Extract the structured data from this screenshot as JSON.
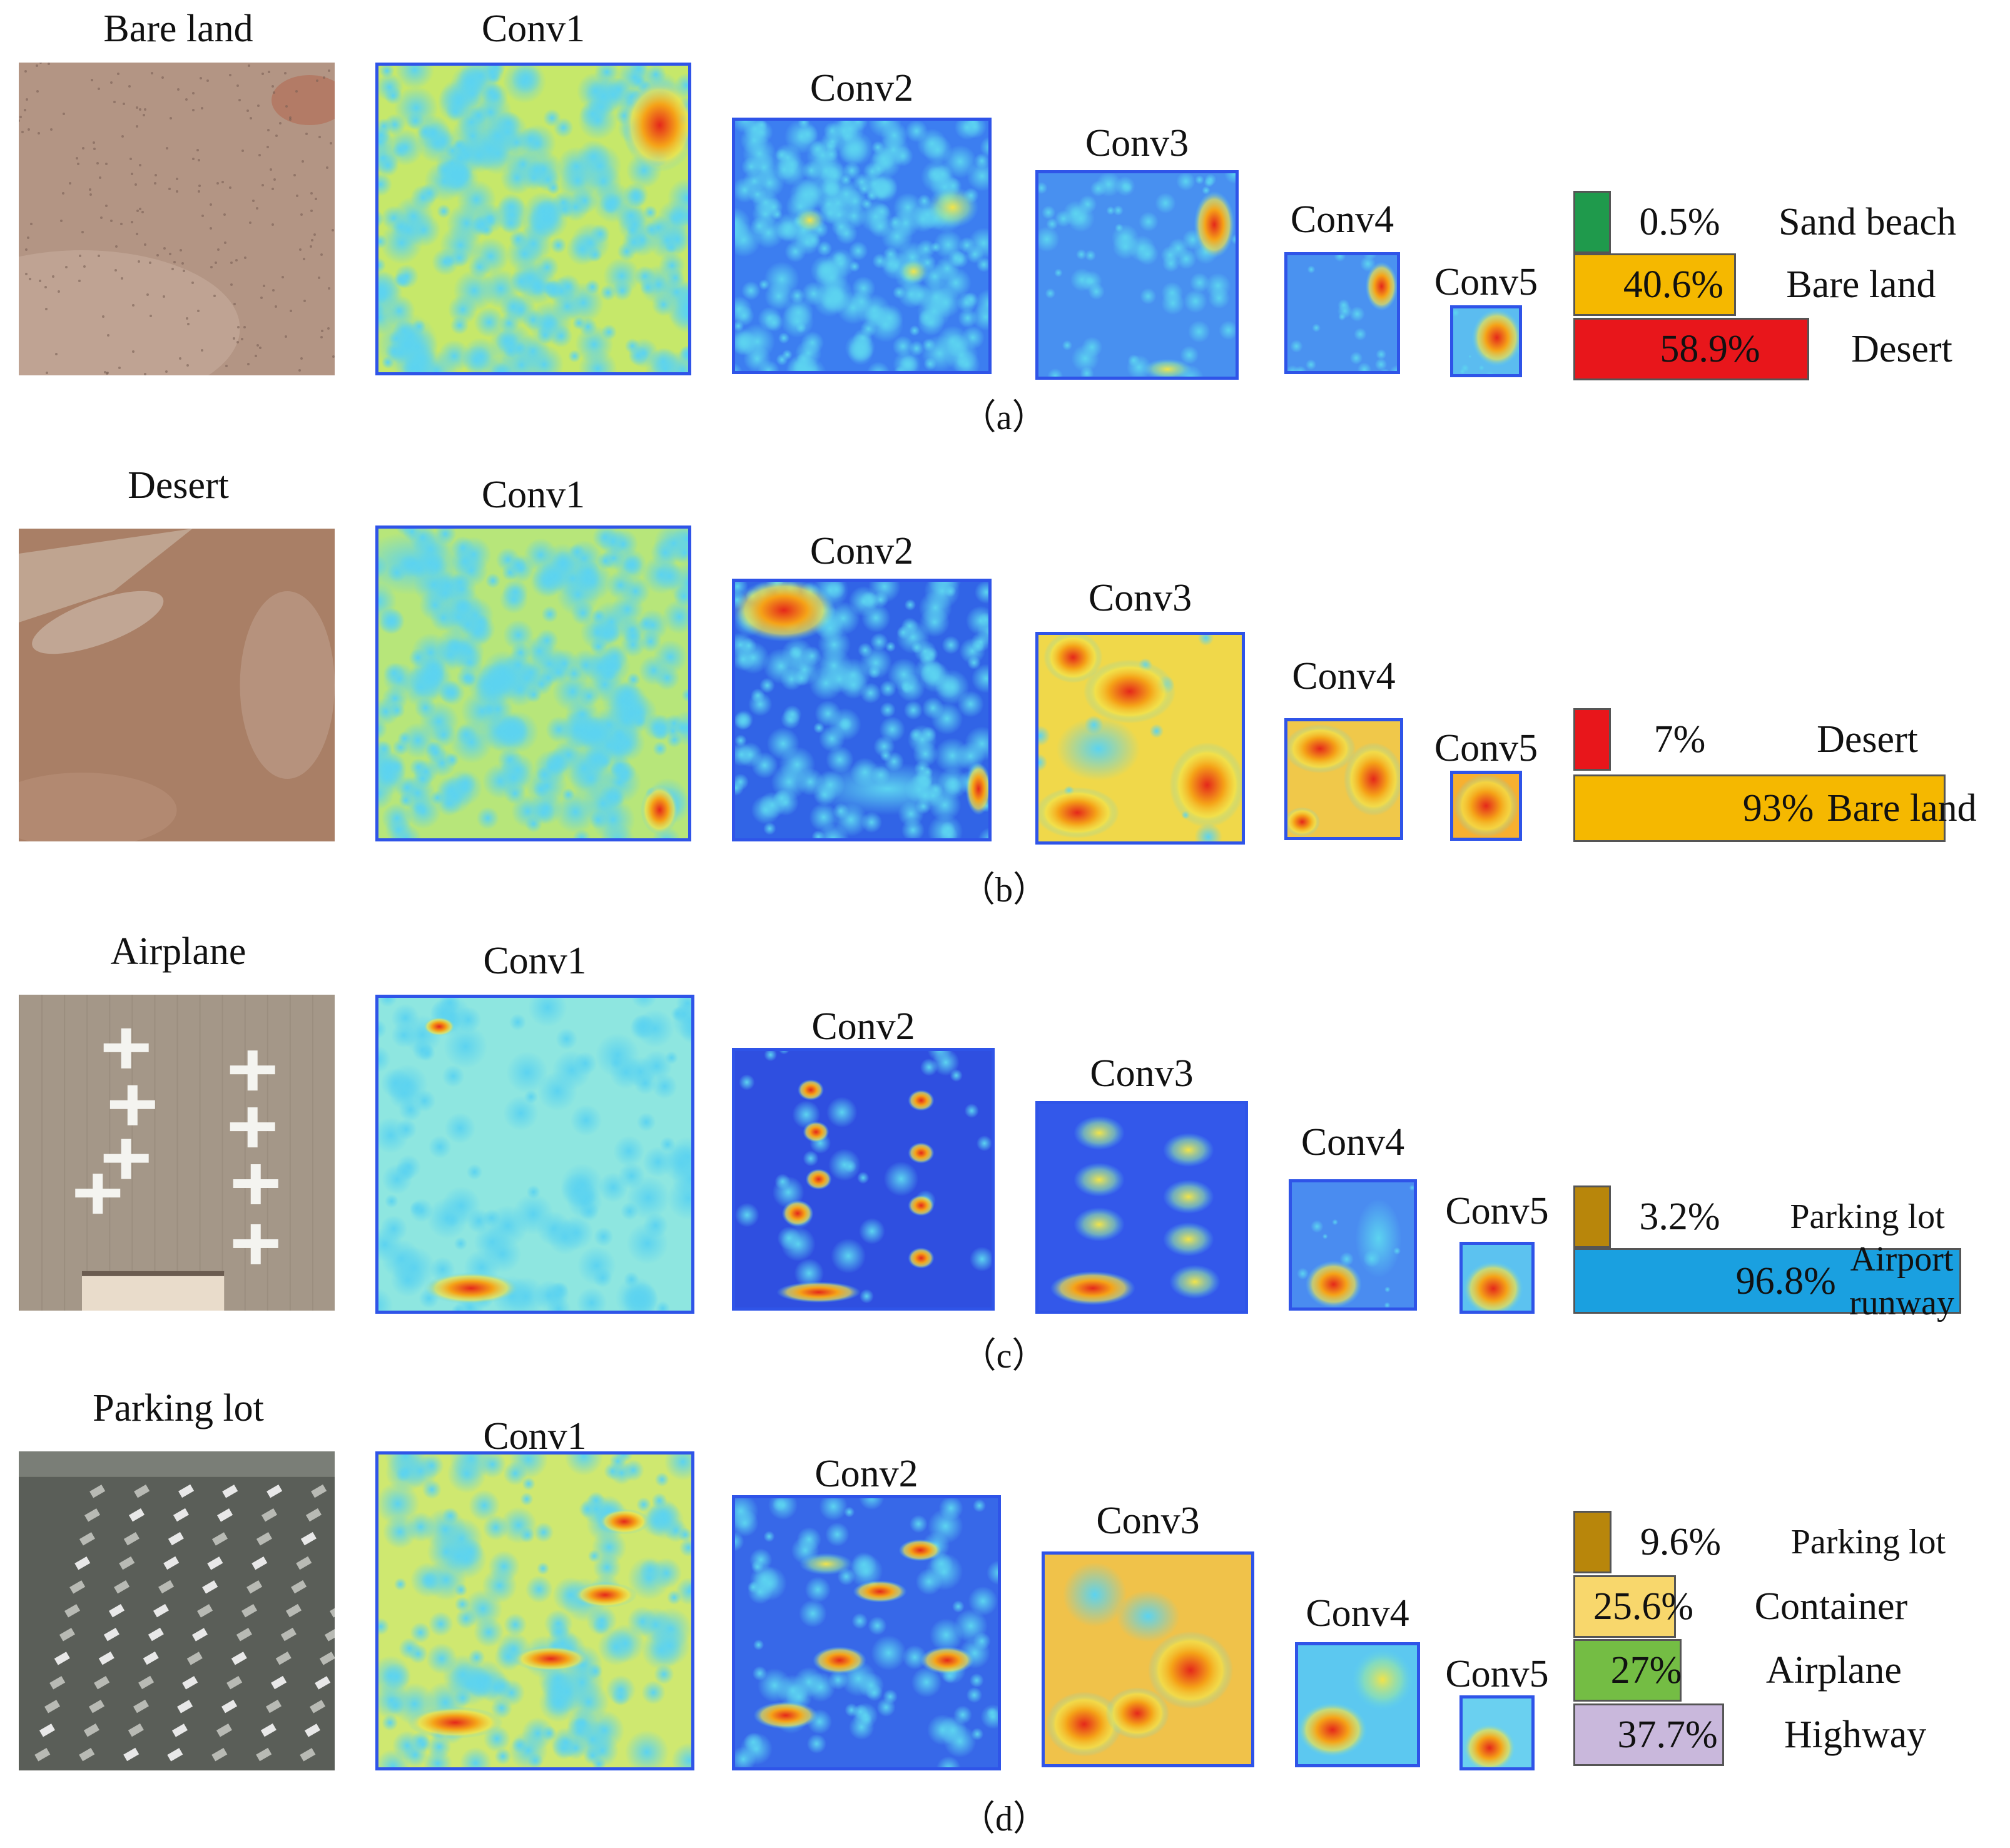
{
  "colors": {
    "sand_beach": "#1f9a4c",
    "bare_land": "#f5b800",
    "desert": "#e8161b",
    "parking_lot": "#b8860b",
    "airport_runway": "#1aa0e0",
    "container": "#f8d76c",
    "airplane": "#74bd44",
    "highway": "#c9b8dc",
    "jet_high": "#e4281b",
    "jet_mid": "#f2e34a",
    "jet_low": "#2f54e8",
    "jet_cyan": "#5cd3f0"
  },
  "rows": [
    {
      "id": "a",
      "input_label": "Bare land",
      "caption": "（a）",
      "layers": [
        "Conv1",
        "Conv2",
        "Conv3",
        "Conv4",
        "Conv5"
      ],
      "predictions": [
        {
          "class": "Sand beach",
          "percent_text": "0.5%",
          "value": 0.5,
          "color": "#1f9a4c"
        },
        {
          "class": "Bare land",
          "percent_text": "40.6%",
          "value": 40.6,
          "color": "#f5b800"
        },
        {
          "class": "Desert",
          "percent_text": "58.9%",
          "value": 58.9,
          "color": "#e8161b"
        }
      ]
    },
    {
      "id": "b",
      "input_label": "Desert",
      "caption": "（b）",
      "layers": [
        "Conv1",
        "Conv2",
        "Conv3",
        "Conv4",
        "Conv5"
      ],
      "predictions": [
        {
          "class": "Desert",
          "percent_text": "7%",
          "value": 7,
          "color": "#e8161b"
        },
        {
          "class": "Bare land",
          "percent_text": "93%",
          "value": 93,
          "color": "#f5b800"
        }
      ]
    },
    {
      "id": "c",
      "input_label": "Airplane",
      "caption": "（c）",
      "layers": [
        "Conv1",
        "Conv2",
        "Conv3",
        "Conv4",
        "Conv5"
      ],
      "predictions": [
        {
          "class": "Parking lot",
          "percent_text": "3.2%",
          "value": 3.2,
          "color": "#b8860b"
        },
        {
          "class": "Airport runway",
          "class_lines": [
            "Airport",
            "runway"
          ],
          "percent_text": "96.8%",
          "value": 96.8,
          "color": "#1aa0e0"
        }
      ]
    },
    {
      "id": "d",
      "input_label": "Parking lot",
      "caption": "（d）",
      "layers": [
        "Conv1",
        "Conv2",
        "Conv3",
        "Conv4",
        "Conv5"
      ],
      "predictions": [
        {
          "class": "Parking lot",
          "percent_text": "9.6%",
          "value": 9.6,
          "color": "#b8860b"
        },
        {
          "class": "Container",
          "percent_text": "25.6%",
          "value": 25.6,
          "color": "#f8d76c"
        },
        {
          "class": "Airplane",
          "percent_text": "27%",
          "value": 27,
          "color": "#74bd44"
        },
        {
          "class": "Highway",
          "percent_text": "37.7%",
          "value": 37.7,
          "color": "#c9b8dc"
        }
      ]
    }
  ]
}
